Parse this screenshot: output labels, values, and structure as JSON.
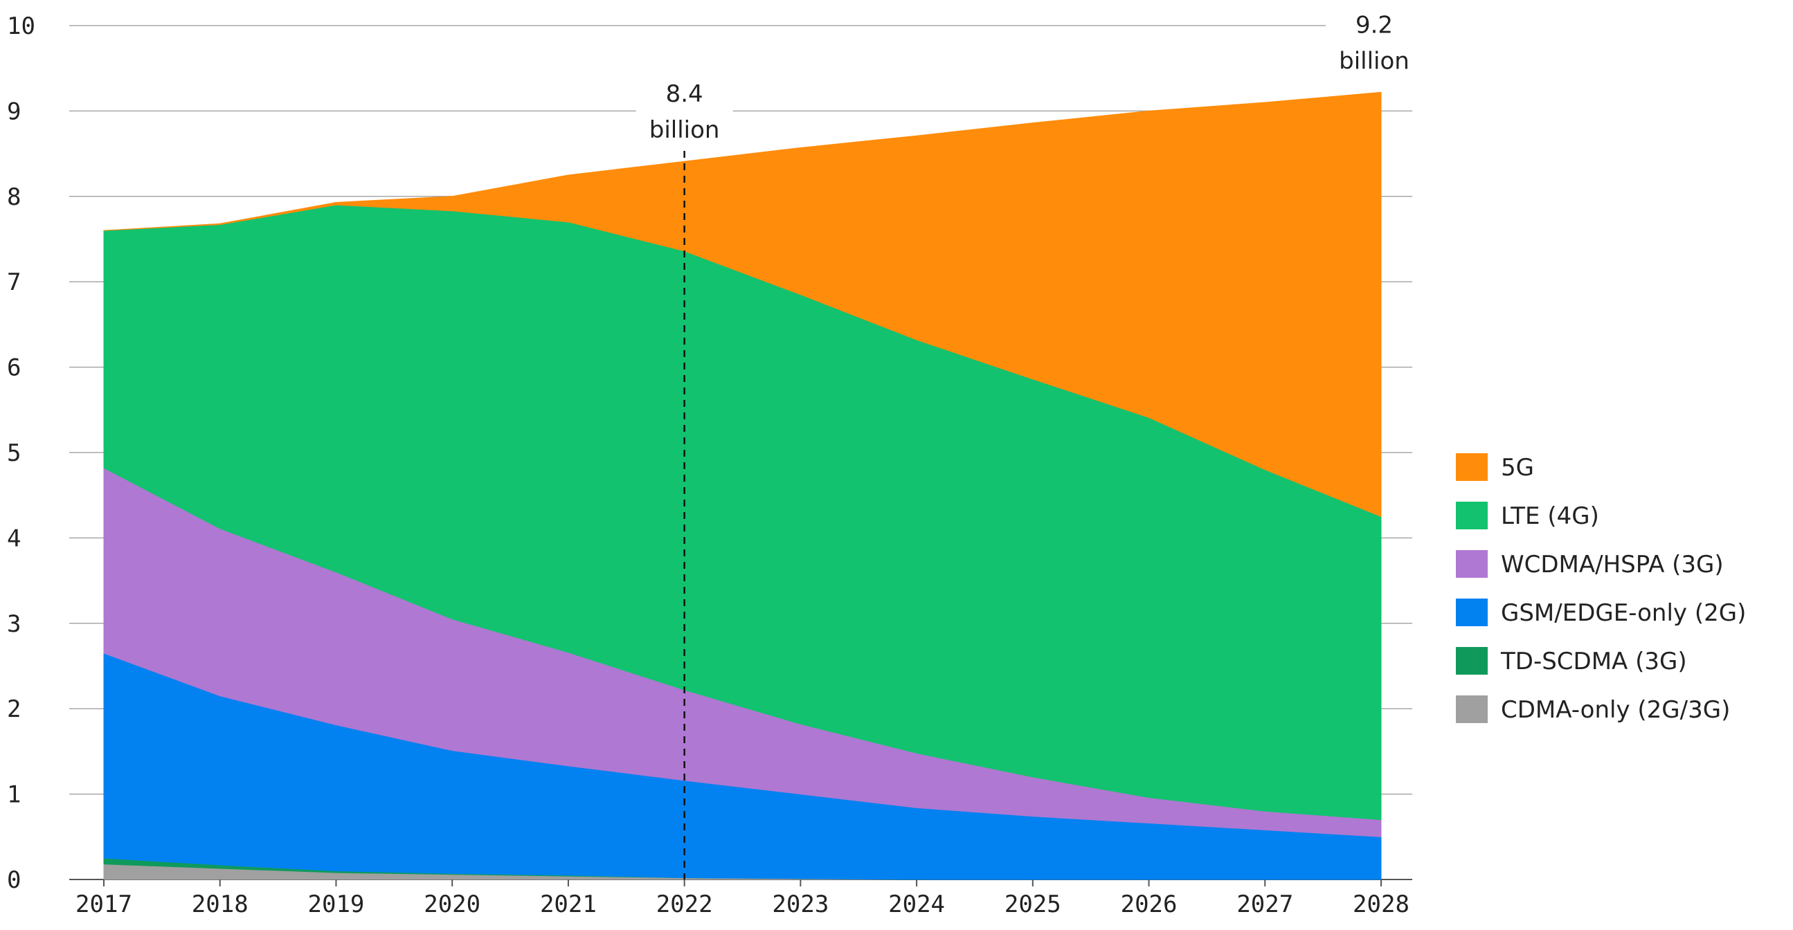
{
  "chart_data": {
    "type": "area",
    "stacked": true,
    "x": [
      "2017",
      "2018",
      "2019",
      "2020",
      "2021",
      "2022",
      "2023",
      "2024",
      "2025",
      "2026",
      "2027",
      "2028"
    ],
    "ylim": [
      0,
      10
    ],
    "yticks": [
      "0",
      "1",
      "2",
      "3",
      "4",
      "5",
      "6",
      "7",
      "8",
      "9",
      "10"
    ],
    "grid": "horizontal",
    "legend_position": "right",
    "series": [
      {
        "name": "CDMA-only (2G/3G)",
        "color": "#a0a0a0",
        "values": [
          0.18,
          0.13,
          0.08,
          0.06,
          0.04,
          0.02,
          0.01,
          0.0,
          0.0,
          0.0,
          0.0,
          0.0
        ]
      },
      {
        "name": "TD-SCDMA (3G)",
        "color": "#0f9a5c",
        "values": [
          0.07,
          0.04,
          0.02,
          0.01,
          0.01,
          0.0,
          0.0,
          0.0,
          0.0,
          0.0,
          0.0,
          0.0
        ]
      },
      {
        "name": "GSM/EDGE-only (2G)",
        "color": "#0282f0",
        "values": [
          2.4,
          1.98,
          1.71,
          1.44,
          1.28,
          1.14,
          0.99,
          0.84,
          0.74,
          0.66,
          0.58,
          0.5
        ]
      },
      {
        "name": "WCDMA/HSPA (3G)",
        "color": "#af78d2",
        "values": [
          2.17,
          1.96,
          1.79,
          1.54,
          1.33,
          1.06,
          0.82,
          0.64,
          0.46,
          0.3,
          0.22,
          0.2
        ]
      },
      {
        "name": "LTE (4G)",
        "color": "#12c26f",
        "values": [
          2.78,
          3.56,
          4.3,
          4.78,
          5.04,
          5.14,
          5.03,
          4.84,
          4.66,
          4.45,
          4.0,
          3.55
        ]
      },
      {
        "name": "5G",
        "color": "#ff8c0a",
        "values": [
          0.0,
          0.01,
          0.03,
          0.17,
          0.55,
          1.05,
          1.72,
          2.39,
          3.0,
          3.59,
          4.3,
          4.97
        ]
      }
    ],
    "legend_order": [
      "5G",
      "LTE (4G)",
      "WCDMA/HSPA (3G)",
      "GSM/EDGE-only (2G)",
      "TD-SCDMA (3G)",
      "CDMA-only (2G/3G)"
    ],
    "annotations": [
      {
        "x": "2022",
        "value": "8.4",
        "unit": "billion",
        "dashed_line": true
      },
      {
        "x": "2028",
        "value": "9.2",
        "unit": "billion",
        "dashed_line": false
      }
    ]
  }
}
